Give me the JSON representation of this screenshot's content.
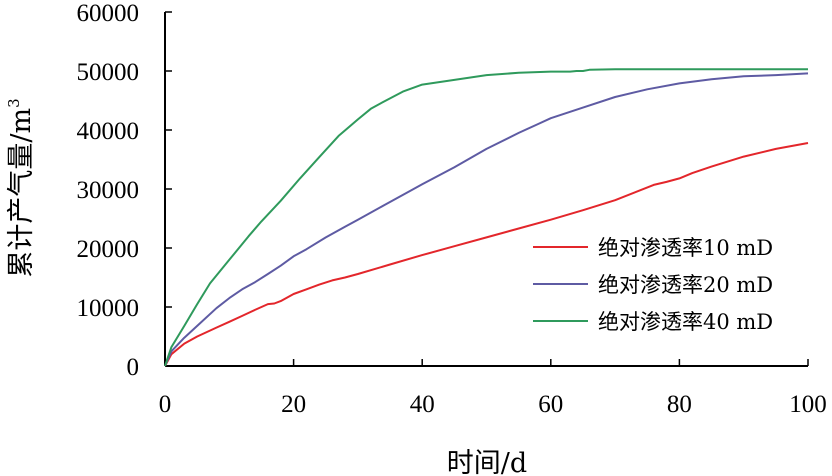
{
  "chart_data": {
    "type": "line",
    "xlabel": "时间/d",
    "ylabel": "累计产气量/m",
    "ylabel_sup": "3",
    "xlim": [
      0,
      100
    ],
    "ylim": [
      0,
      60000
    ],
    "xticks": [
      0,
      20,
      40,
      60,
      80,
      100
    ],
    "yticks": [
      0,
      10000,
      20000,
      30000,
      40000,
      50000,
      60000
    ],
    "grid": false,
    "legend_position": "right",
    "series": [
      {
        "name": "绝对渗透率10 mD",
        "color": "#e3262b",
        "x": [
          0,
          1,
          3,
          5,
          8,
          10,
          12,
          14,
          16,
          17,
          18,
          20,
          22,
          24,
          26,
          28,
          30,
          35,
          40,
          45,
          50,
          55,
          60,
          65,
          70,
          76,
          78,
          80,
          82,
          85,
          90,
          95,
          100
        ],
        "y": [
          0,
          2000,
          3800,
          5000,
          6500,
          7500,
          8500,
          9500,
          10500,
          10600,
          11000,
          12200,
          13000,
          13800,
          14500,
          15000,
          15600,
          17200,
          18800,
          20300,
          21800,
          23300,
          24800,
          26400,
          28100,
          30700,
          31200,
          31800,
          32700,
          33800,
          35500,
          36800,
          37800
        ]
      },
      {
        "name": "绝对渗透率20 mD",
        "color": "#5e5ba3",
        "x": [
          0,
          1,
          3,
          5,
          8,
          10,
          12,
          14,
          16,
          18,
          20,
          22,
          25,
          28,
          30,
          34,
          38,
          40,
          45,
          50,
          55,
          58,
          60,
          65,
          70,
          75,
          80,
          85,
          90,
          95,
          100
        ],
        "y": [
          0,
          2500,
          4800,
          6800,
          9800,
          11500,
          13000,
          14200,
          15600,
          17000,
          18600,
          19800,
          21800,
          23600,
          24800,
          27200,
          29600,
          30800,
          33700,
          36800,
          39500,
          41000,
          42000,
          43800,
          45600,
          46900,
          47900,
          48600,
          49100,
          49300,
          49600
        ]
      },
      {
        "name": "绝对渗透率40 mD",
        "color": "#2f9a5c",
        "x": [
          0,
          1,
          3,
          5,
          7,
          10,
          13,
          15,
          18,
          21,
          24,
          27,
          30,
          32,
          34,
          37,
          40,
          45,
          50,
          55,
          60,
          63,
          64,
          65,
          66,
          70,
          75,
          80,
          85,
          90,
          95,
          100
        ],
        "y": [
          0,
          3200,
          6800,
          10500,
          14000,
          18000,
          22000,
          24500,
          28000,
          31800,
          35400,
          39000,
          41800,
          43600,
          44800,
          46500,
          47700,
          48500,
          49300,
          49700,
          49900,
          49900,
          50000,
          50000,
          50200,
          50300,
          50300,
          50300,
          50300,
          50300,
          50300,
          50300
        ]
      }
    ]
  }
}
